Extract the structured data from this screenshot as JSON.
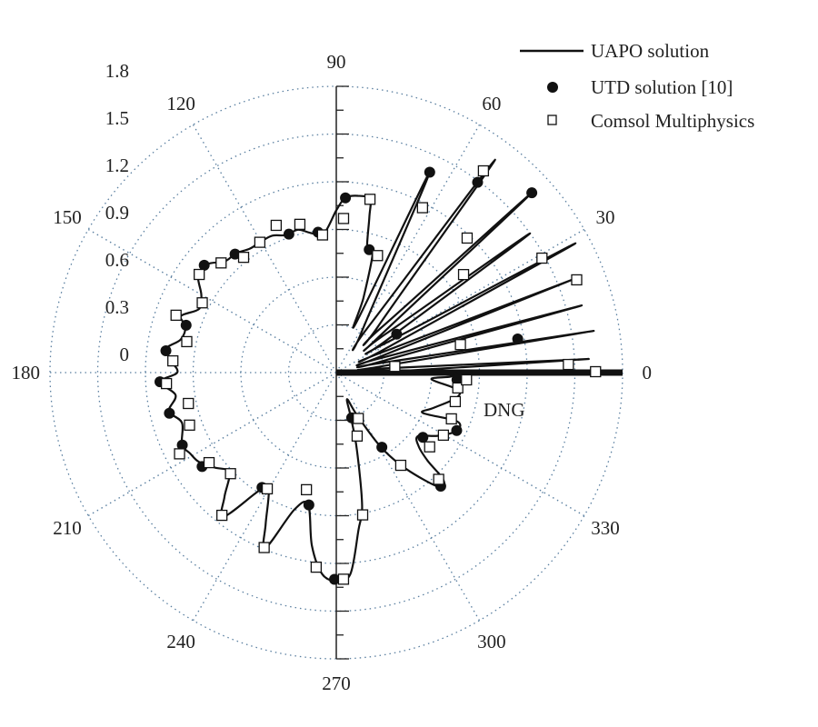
{
  "chart_data": {
    "type": "polar",
    "angle_ticks": [
      "0",
      "30",
      "60",
      "90",
      "120",
      "150",
      "180",
      "210",
      "240",
      "270",
      "300",
      "330"
    ],
    "radial_ticks": [
      "0",
      "0.3",
      "0.6",
      "0.9",
      "1.2",
      "1.5",
      "1.8"
    ],
    "rlim": [
      0,
      1.8
    ],
    "grid": true,
    "legend_position": "top-right",
    "annotation": "DNG",
    "series": [
      {
        "name": "UAPO solution",
        "style": "line",
        "points": [
          [
            1,
            0.35
          ],
          [
            3.1,
            1.59
          ],
          [
            5,
            0.3
          ],
          [
            8,
            0.3
          ],
          [
            9.2,
            1.64
          ],
          [
            12,
            0.3
          ],
          [
            14,
            0.3
          ],
          [
            15.3,
            1.6
          ],
          [
            18,
            0.3
          ],
          [
            20,
            0.3
          ],
          [
            21.5,
            1.63
          ],
          [
            24,
            0.3
          ],
          [
            26,
            0.35
          ],
          [
            28.4,
            1.71
          ],
          [
            31,
            0.35
          ],
          [
            33,
            0.4
          ],
          [
            35.7,
            1.5
          ],
          [
            38,
            0.4
          ],
          [
            40,
            0.35
          ],
          [
            42.6,
            1.67
          ],
          [
            45,
            0.4
          ],
          [
            48,
            0.4
          ],
          [
            53.3,
            1.67
          ],
          [
            55,
            0.35
          ],
          [
            58,
            0.3
          ],
          [
            65,
            1.39
          ],
          [
            68,
            0.35
          ],
          [
            70,
            0.5
          ],
          [
            73,
            0.78
          ],
          [
            76,
            0.8
          ],
          [
            78,
            1.0
          ],
          [
            79,
            1.11
          ],
          [
            83,
            1.12
          ],
          [
            87,
            1.1
          ],
          [
            90,
            1.02
          ],
          [
            95,
            0.88
          ],
          [
            100,
            0.89
          ],
          [
            105,
            0.93
          ],
          [
            110,
            0.92
          ],
          [
            115,
            0.95
          ],
          [
            120,
            0.95
          ],
          [
            125,
            0.95
          ],
          [
            130,
            0.98
          ],
          [
            135,
            0.99
          ],
          [
            140,
            1.06
          ],
          [
            145,
            1.06
          ],
          [
            150,
            0.98
          ],
          [
            155,
            0.95
          ],
          [
            160,
            1.04
          ],
          [
            163,
            0.99
          ],
          [
            168,
            1.0
          ],
          [
            172,
            1.08
          ],
          [
            176,
            1.04
          ],
          [
            180,
            1.0
          ],
          [
            183,
            1.11
          ],
          [
            188,
            1.02
          ],
          [
            193,
            1.08
          ],
          [
            198,
            1.02
          ],
          [
            205,
            1.07
          ],
          [
            209,
            1.05
          ],
          [
            213,
            1.03
          ],
          [
            218,
            0.97
          ],
          [
            223,
            0.92
          ],
          [
            228,
            1.05
          ],
          [
            232,
            1.15
          ],
          [
            237,
            0.88
          ],
          [
            240,
            0.85
          ],
          [
            245,
            1.05
          ],
          [
            248,
            1.19
          ],
          [
            253,
            0.9
          ],
          [
            258,
            0.85
          ],
          [
            262,
            1.1
          ],
          [
            266,
            1.27
          ],
          [
            270,
            1.31
          ],
          [
            274,
            1.27
          ],
          [
            278,
            1.0
          ],
          [
            281,
            0.85
          ],
          [
            285,
            0.5
          ],
          [
            288,
            0.3
          ],
          [
            292,
            0.18
          ],
          [
            296,
            0.3
          ],
          [
            301,
            0.55
          ],
          [
            306,
            0.75
          ],
          [
            312,
            0.97
          ],
          [
            315,
            0.95
          ],
          [
            316,
            0.8
          ],
          [
            318,
            0.7
          ],
          [
            322,
            0.65
          ],
          [
            328,
            0.75
          ],
          [
            334,
            0.84
          ],
          [
            338,
            0.82
          ],
          [
            335,
            0.6
          ],
          [
            340,
            0.65
          ],
          [
            348,
            0.77
          ],
          [
            352,
            0.77
          ],
          [
            356,
            0.6
          ],
          [
            358,
            0.72
          ],
          [
            0,
            0.76
          ]
        ]
      },
      {
        "name": "UTD solution [10]",
        "style": "filled-circle",
        "points": [
          [
            87,
            1.1
          ],
          [
            65,
            1.39
          ],
          [
            53.4,
            1.49
          ],
          [
            42.6,
            1.67
          ],
          [
            75,
            0.8
          ],
          [
            32.5,
            0.45
          ],
          [
            10.5,
            1.16
          ],
          [
            6,
            0.37
          ],
          [
            97.4,
            0.89
          ],
          [
            108.9,
            0.92
          ],
          [
            130.5,
            0.98
          ],
          [
            140.9,
            1.07
          ],
          [
            162.5,
            0.99
          ],
          [
            172.7,
            1.08
          ],
          [
            183,
            1.11
          ],
          [
            193.7,
            1.08
          ],
          [
            205.2,
            1.07
          ],
          [
            215,
            1.03
          ],
          [
            237.1,
            0.86
          ],
          [
            258.3,
            0.85
          ],
          [
            269.5,
            1.3
          ],
          [
            288.8,
            0.3
          ],
          [
            301.4,
            0.55
          ],
          [
            323.2,
            0.68
          ],
          [
            312.6,
            0.97
          ],
          [
            334.3,
            0.84
          ],
          [
            356.6,
            0.76
          ]
        ]
      },
      {
        "name": "Comsol Multiphysics",
        "style": "open-square",
        "points": [
          [
            70.6,
            0.78
          ],
          [
            62.4,
            1.17
          ],
          [
            53.9,
            1.57
          ],
          [
            45.8,
            1.18
          ],
          [
            37.6,
            1.01
          ],
          [
            29.1,
            1.48
          ],
          [
            21.1,
            1.62
          ],
          [
            12.7,
            0.8
          ],
          [
            2,
            1.46
          ],
          [
            0.2,
            1.63
          ],
          [
            6,
            0.37
          ],
          [
            87.3,
            0.97
          ],
          [
            79,
            1.11
          ],
          [
            112.2,
            1.0
          ],
          [
            103.8,
            0.96
          ],
          [
            95.7,
            0.87
          ],
          [
            120.4,
            0.95
          ],
          [
            128.8,
            0.93
          ],
          [
            136.4,
            1.0
          ],
          [
            144.4,
            1.06
          ],
          [
            152.5,
            0.95
          ],
          [
            160.3,
            1.07
          ],
          [
            168.3,
            0.96
          ],
          [
            175.9,
            1.03
          ],
          [
            183.7,
            1.07
          ],
          [
            191.8,
            0.95
          ],
          [
            199.7,
            0.98
          ],
          [
            207.4,
            1.11
          ],
          [
            215.3,
            0.98
          ],
          [
            223.7,
            0.92
          ],
          [
            231.3,
            1.15
          ],
          [
            239.3,
            0.85
          ],
          [
            247.6,
            1.19
          ],
          [
            255.7,
            0.76
          ],
          [
            264.1,
            1.23
          ],
          [
            272,
            1.3
          ],
          [
            295.6,
            0.32
          ],
          [
            288.2,
            0.42
          ],
          [
            280.5,
            0.91
          ],
          [
            304.8,
            0.71
          ],
          [
            321.5,
            0.75
          ],
          [
            329.7,
            0.78
          ],
          [
            313.8,
            0.93
          ],
          [
            338.1,
            0.78
          ],
          [
            346.3,
            0.77
          ],
          [
            352.8,
            0.77
          ],
          [
            356.8,
            0.82
          ]
        ]
      }
    ]
  }
}
